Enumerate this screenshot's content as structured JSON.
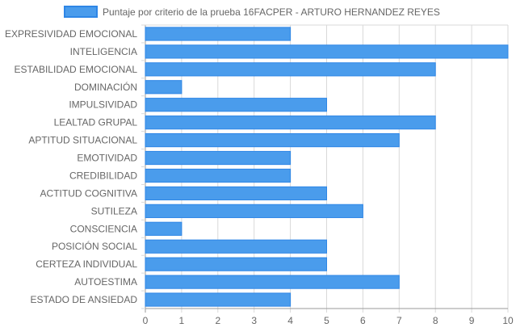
{
  "chart_data": {
    "type": "bar",
    "orientation": "horizontal",
    "categories": [
      "EXPRESIVIDAD EMOCIONAL",
      "INTELIGENCIA",
      "ESTABILIDAD EMOCIONAL",
      "DOMINACIÓN",
      "IMPULSIVIDAD",
      "LEALTAD GRUPAL",
      "APTITUD SITUACIONAL",
      "EMOTIVIDAD",
      "CREDIBILIDAD",
      "ACTITUD COGNITIVA",
      "SUTILEZA",
      "CONSCIENCIA",
      "POSICIÓN SOCIAL",
      "CERTEZA INDIVIDUAL",
      "AUTOESTIMA",
      "ESTADO DE ANSIEDAD"
    ],
    "series": [
      {
        "name": "Puntaje por criterio de la prueba 16FACPER - ARTURO HERNANDEZ REYES",
        "values": [
          4,
          10,
          8,
          1,
          5,
          8,
          7,
          4,
          4,
          5,
          6,
          1,
          5,
          5,
          7,
          4
        ]
      }
    ],
    "xlim": [
      0,
      10
    ],
    "x_ticks": [
      "0",
      "1",
      "2",
      "3",
      "4",
      "5",
      "6",
      "7",
      "8",
      "9",
      "10"
    ],
    "title": "",
    "xlabel": "",
    "ylabel": "",
    "grid": true,
    "legend": "top-center",
    "colors": {
      "bar_fill": "#4a9cec",
      "bar_stroke": "#2e86e6",
      "grid": "#d9d9d9",
      "axis": "#999999",
      "text": "#666666"
    }
  }
}
